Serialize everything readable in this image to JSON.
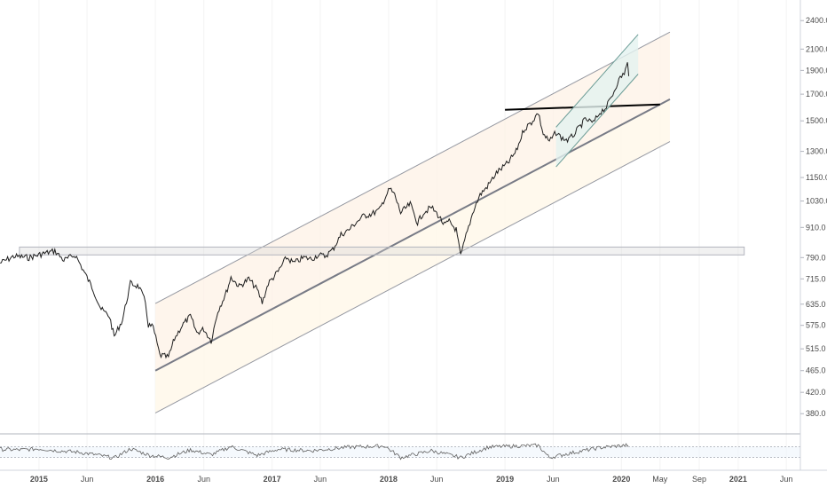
{
  "chart_data": {
    "type": "line",
    "title": "",
    "xlabel": "",
    "ylabel": "",
    "scale": "log",
    "ylim": [
      350,
      2600
    ],
    "xlim": [
      "2014-09-01",
      "2021-07-15"
    ],
    "yticks": [
      "2400.0",
      "2100.0",
      "1900.0",
      "1700.0",
      "1500.0",
      "1300.0",
      "1150.0",
      "1030.0",
      "910.0",
      "790.0",
      "715.0",
      "635.0",
      "575.0",
      "515.0",
      "465.0",
      "420.0",
      "380.0"
    ],
    "xticks": [
      {
        "label": "2015",
        "date": "2015-01-01"
      },
      {
        "label": "Jun",
        "date": "2015-06-01"
      },
      {
        "label": "2016",
        "date": "2016-01-01"
      },
      {
        "label": "Jun",
        "date": "2016-06-01"
      },
      {
        "label": "2017",
        "date": "2017-01-01"
      },
      {
        "label": "Jun",
        "date": "2017-06-01"
      },
      {
        "label": "2018",
        "date": "2018-01-01"
      },
      {
        "label": "Jun",
        "date": "2018-06-01"
      },
      {
        "label": "2019",
        "date": "2019-01-01"
      },
      {
        "label": "Jun",
        "date": "2019-06-01"
      },
      {
        "label": "2020",
        "date": "2020-01-01"
      },
      {
        "label": "May",
        "date": "2020-05-01"
      },
      {
        "label": "Sep",
        "date": "2020-09-01"
      },
      {
        "label": "2021",
        "date": "2021-01-01"
      },
      {
        "label": "Jun",
        "date": "2021-06-01"
      }
    ],
    "series": [
      {
        "points": [
          [
            "2014-09-01",
            770
          ],
          [
            "2014-10-15",
            795
          ],
          [
            "2014-12-01",
            790
          ],
          [
            "2015-01-15",
            805
          ],
          [
            "2015-02-20",
            815
          ],
          [
            "2015-03-20",
            780
          ],
          [
            "2015-04-25",
            800
          ],
          [
            "2015-05-20",
            745
          ],
          [
            "2015-06-20",
            680
          ],
          [
            "2015-07-15",
            620
          ],
          [
            "2015-08-10",
            600
          ],
          [
            "2015-08-25",
            545
          ],
          [
            "2015-09-20",
            590
          ],
          [
            "2015-10-15",
            700
          ],
          [
            "2015-11-10",
            690
          ],
          [
            "2015-12-01",
            640
          ],
          [
            "2015-12-10",
            575
          ],
          [
            "2015-12-25",
            570
          ],
          [
            "2016-01-15",
            500
          ],
          [
            "2016-02-11",
            495
          ],
          [
            "2016-03-01",
            540
          ],
          [
            "2016-03-25",
            575
          ],
          [
            "2016-04-20",
            600
          ],
          [
            "2016-05-10",
            555
          ],
          [
            "2016-06-01",
            565
          ],
          [
            "2016-06-24",
            535
          ],
          [
            "2016-07-15",
            615
          ],
          [
            "2016-08-10",
            670
          ],
          [
            "2016-08-25",
            720
          ],
          [
            "2016-09-20",
            690
          ],
          [
            "2016-10-20",
            715
          ],
          [
            "2016-11-15",
            680
          ],
          [
            "2016-12-01",
            640
          ],
          [
            "2016-12-20",
            700
          ],
          [
            "2017-01-20",
            740
          ],
          [
            "2017-02-15",
            790
          ],
          [
            "2017-03-10",
            770
          ],
          [
            "2017-04-10",
            790
          ],
          [
            "2017-05-05",
            785
          ],
          [
            "2017-05-25",
            800
          ],
          [
            "2017-06-15",
            795
          ],
          [
            "2017-07-10",
            820
          ],
          [
            "2017-08-05",
            880
          ],
          [
            "2017-08-30",
            900
          ],
          [
            "2017-09-20",
            930
          ],
          [
            "2017-10-15",
            960
          ],
          [
            "2017-11-10",
            970
          ],
          [
            "2017-12-05",
            990
          ],
          [
            "2017-12-20",
            1045
          ],
          [
            "2018-01-05",
            1090
          ],
          [
            "2018-01-20",
            1060
          ],
          [
            "2018-02-08",
            975
          ],
          [
            "2018-03-10",
            1015
          ],
          [
            "2018-04-02",
            930
          ],
          [
            "2018-04-20",
            975
          ],
          [
            "2018-05-15",
            1000
          ],
          [
            "2018-06-05",
            965
          ],
          [
            "2018-06-25",
            920
          ],
          [
            "2018-07-10",
            935
          ],
          [
            "2018-08-01",
            900
          ],
          [
            "2018-08-15",
            795
          ],
          [
            "2018-09-01",
            875
          ],
          [
            "2018-09-25",
            990
          ],
          [
            "2018-10-15",
            1060
          ],
          [
            "2018-11-10",
            1110
          ],
          [
            "2018-12-05",
            1175
          ],
          [
            "2019-01-10",
            1230
          ],
          [
            "2019-02-05",
            1300
          ],
          [
            "2019-03-01",
            1440
          ],
          [
            "2019-03-25",
            1490
          ],
          [
            "2019-04-15",
            1560
          ],
          [
            "2019-05-01",
            1410
          ],
          [
            "2019-05-20",
            1360
          ],
          [
            "2019-06-10",
            1420
          ],
          [
            "2019-07-01",
            1380
          ],
          [
            "2019-07-20",
            1370
          ],
          [
            "2019-08-10",
            1420
          ],
          [
            "2019-09-10",
            1510
          ],
          [
            "2019-10-05",
            1485
          ],
          [
            "2019-10-25",
            1560
          ],
          [
            "2019-11-15",
            1600
          ],
          [
            "2019-12-05",
            1700
          ],
          [
            "2019-12-20",
            1800
          ],
          [
            "2020-01-10",
            1880
          ],
          [
            "2020-01-20",
            1960
          ],
          [
            "2020-01-24",
            1850
          ]
        ]
      }
    ],
    "rsi": [
      [
        "2014-09-01",
        60
      ],
      [
        "2014-11-01",
        58
      ],
      [
        "2015-01-01",
        62
      ],
      [
        "2015-03-01",
        55
      ],
      [
        "2015-05-01",
        50
      ],
      [
        "2015-07-01",
        40
      ],
      [
        "2015-08-25",
        28
      ],
      [
        "2015-10-15",
        62
      ],
      [
        "2015-12-15",
        38
      ],
      [
        "2016-02-11",
        30
      ],
      [
        "2016-04-20",
        58
      ],
      [
        "2016-06-24",
        40
      ],
      [
        "2016-08-25",
        70
      ],
      [
        "2016-11-15",
        38
      ],
      [
        "2017-01-20",
        60
      ],
      [
        "2017-05-05",
        55
      ],
      [
        "2017-08-30",
        68
      ],
      [
        "2017-12-20",
        72
      ],
      [
        "2018-02-08",
        30
      ],
      [
        "2018-05-15",
        55
      ],
      [
        "2018-08-15",
        30
      ],
      [
        "2018-11-10",
        68
      ],
      [
        "2019-02-05",
        72
      ],
      [
        "2019-04-15",
        74
      ],
      [
        "2019-05-20",
        30
      ],
      [
        "2019-07-20",
        45
      ],
      [
        "2019-10-25",
        66
      ],
      [
        "2019-12-20",
        72
      ],
      [
        "2020-01-20",
        75
      ],
      [
        "2020-01-24",
        62
      ]
    ],
    "annotations": {
      "channel_lower": [
        [
          "2016-01-01",
          465
        ],
        [
          "2020-05-01",
          1620
        ]
      ],
      "channel_offset_upper": 1.37,
      "channel_offset_lower": 0.82,
      "channel_end": "2020-06-01",
      "resistance": [
        [
          "2019-01-01",
          1580
        ],
        [
          "2020-05-01",
          1620
        ]
      ],
      "support_zone": [
        800,
        830
      ],
      "wedge": [
        [
          "2019-06-10",
          1300
        ],
        [
          "2020-01-20",
          1950
        ]
      ]
    }
  }
}
